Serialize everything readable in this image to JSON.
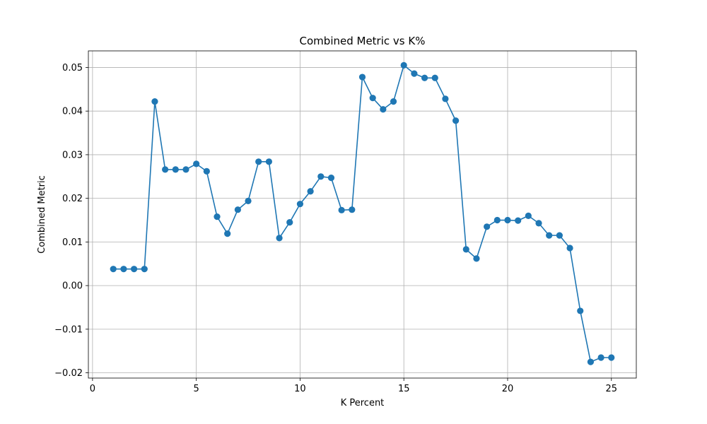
{
  "chart_data": {
    "type": "line",
    "title": "Combined Metric vs K%",
    "xlabel": "K Percent",
    "ylabel": "Combined Metric",
    "xlim": [
      -0.2,
      26.2
    ],
    "ylim": [
      -0.0212,
      0.0538
    ],
    "xticks": [
      0,
      5,
      10,
      15,
      20,
      25
    ],
    "xtick_labels": [
      "0",
      "5",
      "10",
      "15",
      "20",
      "25"
    ],
    "yticks": [
      -0.02,
      -0.01,
      0.0,
      0.01,
      0.02,
      0.03,
      0.04,
      0.05
    ],
    "ytick_labels": [
      "−0.02",
      "−0.01",
      "0.00",
      "0.01",
      "0.02",
      "0.03",
      "0.04",
      "0.05"
    ],
    "grid": true,
    "color": "#1f77b4",
    "marker": "circle",
    "series": [
      {
        "x": [
          1,
          1.5,
          2,
          2.5,
          3,
          3.5,
          4,
          4.5,
          5,
          5.5,
          6,
          6.5,
          7,
          7.5,
          8,
          8.5,
          9,
          9.5,
          10,
          10.5,
          11,
          11.5,
          12,
          12.5,
          13,
          13.5,
          14,
          14.5,
          15,
          15.5,
          16,
          16.5,
          17,
          17.5,
          18,
          18.5,
          19,
          19.5,
          20,
          20.5,
          21,
          21.5,
          22,
          22.5,
          23,
          23.5,
          24,
          24.5,
          25
        ],
        "y": [
          0.0038,
          0.0038,
          0.0038,
          0.0038,
          0.0422,
          0.0266,
          0.0266,
          0.0266,
          0.0279,
          0.0262,
          0.0158,
          0.0119,
          0.0174,
          0.0194,
          0.0284,
          0.0284,
          0.0109,
          0.0145,
          0.0187,
          0.0216,
          0.025,
          0.0247,
          0.0173,
          0.0174,
          0.0478,
          0.043,
          0.0404,
          0.0422,
          0.0505,
          0.0486,
          0.0476,
          0.0476,
          0.0428,
          0.0378,
          0.0083,
          0.0062,
          0.0135,
          0.015,
          0.015,
          0.0149,
          0.016,
          0.0143,
          0.0115,
          0.0115,
          0.0086,
          -0.0058,
          -0.0175,
          -0.0165,
          -0.0165
        ]
      }
    ]
  }
}
